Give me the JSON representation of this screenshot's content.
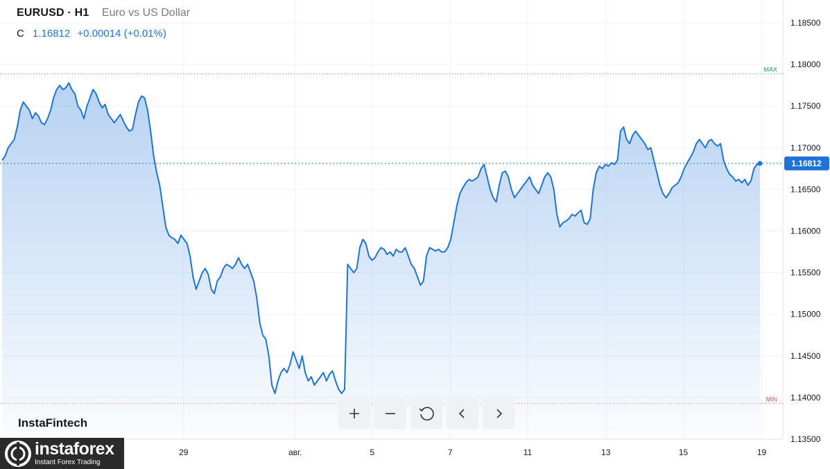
{
  "header": {
    "symbol": "EURUSD · H1",
    "description": "Euro vs US Dollar",
    "close_label": "C",
    "close_value": "1.16812",
    "change": "+0.00014 (+0.01%)"
  },
  "brand": "InstaFintech",
  "watermark": {
    "name": "instaforex",
    "tagline": "Instant Forex Trading"
  },
  "toolbar": {
    "zoom_in": "+",
    "zoom_out": "−"
  },
  "colors": {
    "line": "#1e73d8",
    "max_line": "#2e9c5e",
    "min_line": "#e0525c",
    "price_badge": "#1e73d8"
  },
  "chart_data": {
    "type": "area",
    "ylim": [
      1.135,
      1.1875
    ],
    "y_ticks": [
      "1.18500",
      "1.18000",
      "1.17500",
      "1.17000",
      "1.16500",
      "1.16000",
      "1.15500",
      "1.15000",
      "1.14500",
      "1.14000",
      "1.13500"
    ],
    "x_ticks": [
      {
        "label": "29",
        "t": 0.2345
      },
      {
        "label": "авг.",
        "t": 0.377
      },
      {
        "label": "5",
        "t": 0.4755
      },
      {
        "label": "7",
        "t": 0.575
      },
      {
        "label": "11",
        "t": 0.674
      },
      {
        "label": "13",
        "t": 0.774
      },
      {
        "label": "15",
        "t": 0.873
      },
      {
        "label": "19",
        "t": 0.973
      }
    ],
    "max_level": 1.1789,
    "max_label": "MAX",
    "min_level": 1.1393,
    "min_label": "MIN",
    "last_value": "1.16812",
    "last": 1.16812,
    "series": [
      {
        "values": [
          1.1685,
          1.169,
          1.17,
          1.1705,
          1.171,
          1.1725,
          1.1745,
          1.1755,
          1.175,
          1.1745,
          1.1735,
          1.1742,
          1.1738,
          1.173,
          1.1728,
          1.1735,
          1.1745,
          1.176,
          1.177,
          1.1775,
          1.177,
          1.1772,
          1.1778,
          1.177,
          1.1765,
          1.175,
          1.1745,
          1.1735,
          1.175,
          1.176,
          1.177,
          1.1765,
          1.1755,
          1.1748,
          1.1752,
          1.174,
          1.1735,
          1.173,
          1.1735,
          1.174,
          1.1732,
          1.1725,
          1.172,
          1.1722,
          1.174,
          1.1755,
          1.1762,
          1.176,
          1.1745,
          1.172,
          1.169,
          1.167,
          1.1655,
          1.163,
          1.1605,
          1.1595,
          1.1592,
          1.159,
          1.1585,
          1.1595,
          1.159,
          1.1585,
          1.157,
          1.1545,
          1.153,
          1.154,
          1.155,
          1.1555,
          1.1548,
          1.153,
          1.1525,
          1.154,
          1.1545,
          1.1555,
          1.156,
          1.1558,
          1.1555,
          1.156,
          1.1568,
          1.156,
          1.1555,
          1.156,
          1.155,
          1.154,
          1.152,
          1.149,
          1.1475,
          1.147,
          1.145,
          1.1415,
          1.1405,
          1.142,
          1.143,
          1.1435,
          1.143,
          1.144,
          1.1455,
          1.1445,
          1.1435,
          1.145,
          1.143,
          1.142,
          1.1425,
          1.1415,
          1.142,
          1.1425,
          1.143,
          1.142,
          1.1428,
          1.1432,
          1.142,
          1.141,
          1.1405,
          1.141,
          1.156,
          1.1555,
          1.155,
          1.1555,
          1.158,
          1.159,
          1.1585,
          1.157,
          1.1565,
          1.1568,
          1.1575,
          1.158,
          1.1578,
          1.1572,
          1.1575,
          1.157,
          1.1578,
          1.1575,
          1.1575,
          1.158,
          1.157,
          1.156,
          1.1555,
          1.1545,
          1.1535,
          1.154,
          1.157,
          1.158,
          1.1578,
          1.1576,
          1.1578,
          1.1575,
          1.1575,
          1.158,
          1.159,
          1.161,
          1.163,
          1.1645,
          1.1652,
          1.1658,
          1.1662,
          1.166,
          1.1662,
          1.1665,
          1.1675,
          1.168,
          1.1665,
          1.165,
          1.164,
          1.1635,
          1.1655,
          1.167,
          1.1672,
          1.1665,
          1.165,
          1.164,
          1.1645,
          1.165,
          1.1655,
          1.166,
          1.1665,
          1.1655,
          1.165,
          1.1645,
          1.1655,
          1.1665,
          1.167,
          1.1665,
          1.165,
          1.162,
          1.1605,
          1.161,
          1.1612,
          1.1615,
          1.162,
          1.1618,
          1.1622,
          1.1625,
          1.161,
          1.1608,
          1.1615,
          1.165,
          1.167,
          1.1678,
          1.1675,
          1.168,
          1.1678,
          1.1682,
          1.168,
          1.1685,
          1.172,
          1.1725,
          1.171,
          1.1705,
          1.1715,
          1.172,
          1.1715,
          1.171,
          1.1705,
          1.1698,
          1.17,
          1.1685,
          1.167,
          1.1655,
          1.1645,
          1.164,
          1.1645,
          1.1652,
          1.1655,
          1.1658,
          1.1665,
          1.1675,
          1.1682,
          1.1688,
          1.1695,
          1.1705,
          1.171,
          1.1705,
          1.17,
          1.1708,
          1.171,
          1.1705,
          1.1702,
          1.1705,
          1.1685,
          1.1675,
          1.1668,
          1.1665,
          1.166,
          1.1662,
          1.1658,
          1.1662,
          1.1655,
          1.166,
          1.1675,
          1.168,
          1.16812
        ]
      }
    ]
  }
}
